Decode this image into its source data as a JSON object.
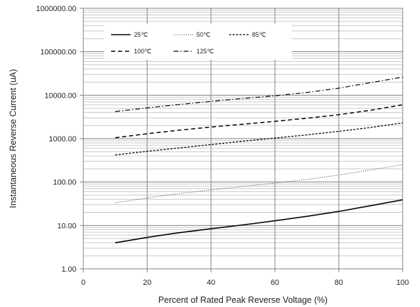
{
  "chart_data": {
    "type": "line",
    "title": "",
    "xlabel": "Percent of  Rated Peak Reverse Voltage (%)",
    "ylabel": "Instantaneous Reverse Current (uA)",
    "xlim": [
      0,
      100
    ],
    "ylim": [
      1,
      1000000
    ],
    "y_scale": "log",
    "x_ticks": [
      "0",
      "20",
      "40",
      "60",
      "80",
      "100"
    ],
    "y_ticks": [
      "1.00",
      "10.00",
      "100.00",
      "1000.00",
      "10000.00",
      "100000.00",
      "1000000.00"
    ],
    "grid": true,
    "legend_position": "top-left",
    "x": [
      10,
      20,
      30,
      40,
      50,
      60,
      70,
      80,
      90,
      100
    ],
    "series": [
      {
        "name": "25℃",
        "style": "solid",
        "color": "#000000",
        "values": [
          4.0,
          5.3,
          6.8,
          8.4,
          10.3,
          12.8,
          16.2,
          21.0,
          28.5,
          39.0
        ]
      },
      {
        "name": "50℃",
        "style": "dotted",
        "color": "#555555",
        "values": [
          33,
          43,
          54,
          66,
          79,
          95,
          115,
          145,
          190,
          250
        ]
      },
      {
        "name": "85℃",
        "style": "dashed-fine",
        "color": "#000000",
        "values": [
          420,
          510,
          610,
          730,
          870,
          1030,
          1220,
          1470,
          1800,
          2300
        ]
      },
      {
        "name": "100℃",
        "style": "dashed",
        "color": "#000000",
        "values": [
          1050,
          1300,
          1560,
          1850,
          2150,
          2500,
          2950,
          3550,
          4500,
          6000
        ]
      },
      {
        "name": "125℃",
        "style": "dashdot",
        "color": "#000000",
        "values": [
          4200,
          5100,
          6100,
          7200,
          8400,
          9700,
          11500,
          14500,
          19500,
          26000
        ]
      }
    ]
  }
}
